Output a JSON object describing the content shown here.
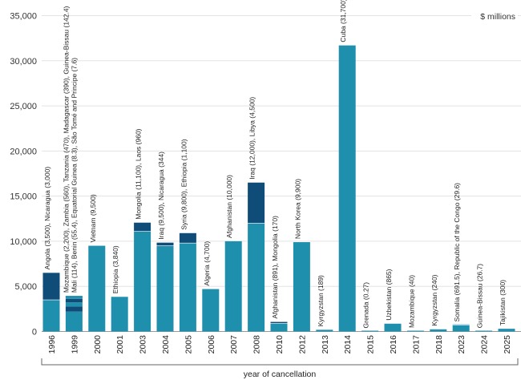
{
  "chart_data": {
    "type": "bar",
    "stacked": true,
    "unit_label": "$ millions",
    "xlabel": "year of cancellation",
    "ylabel": "",
    "ylim": [
      0,
      35000
    ],
    "yticks": [
      "0",
      "5,000",
      "10,000",
      "15,000",
      "20,000",
      "25,000",
      "30,000",
      "35,000"
    ],
    "grid": "horizontal",
    "colors": {
      "light": "#1f8fae",
      "dark": "#0f4d78",
      "divider": "#ffffff"
    },
    "categories": [
      "1996",
      "1999",
      "2000",
      "2001",
      "2003",
      "2004",
      "2005",
      "2006",
      "2007",
      "2008",
      "2010",
      "2012",
      "2013",
      "2014",
      "2015",
      "2016",
      "2017",
      "2018",
      "2023",
      "2024",
      "2025"
    ],
    "bars": [
      {
        "year": "1996",
        "segments": [
          {
            "value": 3500,
            "shade": "light"
          },
          {
            "value": 3000,
            "shade": "dark"
          }
        ],
        "labels": [
          "Angola (3,500), Nicaragua (3,000)"
        ]
      },
      {
        "year": "1999",
        "segments": [
          {
            "value": 2200,
            "shade": "light"
          },
          {
            "value": 560,
            "shade": "dark"
          },
          {
            "value": 470,
            "shade": "light"
          },
          {
            "value": 390,
            "shade": "dark"
          },
          {
            "value": 114,
            "shade": "light"
          },
          {
            "value": 55.4,
            "shade": "light"
          },
          {
            "value": 8.3,
            "shade": "light"
          },
          {
            "value": 7.6,
            "shade": "light"
          },
          {
            "value": 142.4,
            "shade": "light"
          }
        ],
        "labels": [
          "Mozambique (2,200), Zambia (560), Tanzania (470), Madagascar (390),  Guinea-Bissau (142.4)",
          "Mali (114), Benin (55.4), Equatorial Guinea (8.3), São Tomé and Principe (7.6)"
        ]
      },
      {
        "year": "2000",
        "segments": [
          {
            "value": 9500,
            "shade": "light"
          }
        ],
        "labels": [
          "Vietnam (9,500)"
        ]
      },
      {
        "year": "2001",
        "segments": [
          {
            "value": 3840,
            "shade": "light"
          }
        ],
        "labels": [
          "Ethiopia (3,840)"
        ]
      },
      {
        "year": "2003",
        "segments": [
          {
            "value": 11100,
            "shade": "light"
          },
          {
            "value": 960,
            "shade": "dark"
          }
        ],
        "labels": [
          "Mongolia (11,100), Laos (960)"
        ]
      },
      {
        "year": "2004",
        "segments": [
          {
            "value": 9500,
            "shade": "light"
          },
          {
            "value": 344,
            "shade": "dark"
          }
        ],
        "labels": [
          "Iraq (9,500), Nicaragua (344)"
        ]
      },
      {
        "year": "2005",
        "segments": [
          {
            "value": 9800,
            "shade": "light"
          },
          {
            "value": 1100,
            "shade": "dark"
          }
        ],
        "labels": [
          "Syria (9,800), Ethiopia (1,100)"
        ]
      },
      {
        "year": "2006",
        "segments": [
          {
            "value": 4700,
            "shade": "light"
          }
        ],
        "labels": [
          "Algeria (4,700)"
        ]
      },
      {
        "year": "2007",
        "segments": [
          {
            "value": 10000,
            "shade": "light"
          }
        ],
        "labels": [
          "Afghanistan (10,000)"
        ]
      },
      {
        "year": "2008",
        "segments": [
          {
            "value": 12000,
            "shade": "light"
          },
          {
            "value": 4500,
            "shade": "dark"
          }
        ],
        "labels": [
          "Iraq (12,000), Libya (4,500)"
        ]
      },
      {
        "year": "2010",
        "segments": [
          {
            "value": 891,
            "shade": "light"
          },
          {
            "value": 170,
            "shade": "dark"
          }
        ],
        "labels": [
          "Afghanistan (891), Mongolia (170)"
        ]
      },
      {
        "year": "2012",
        "segments": [
          {
            "value": 9900,
            "shade": "light"
          }
        ],
        "labels": [
          "North Korea (9,900)"
        ]
      },
      {
        "year": "2013",
        "segments": [
          {
            "value": 189,
            "shade": "light"
          }
        ],
        "labels": [
          "Kyrgyzstan (189)"
        ]
      },
      {
        "year": "2014",
        "segments": [
          {
            "value": 31700,
            "shade": "light"
          }
        ],
        "labels": [
          "Cuba (31,700)"
        ]
      },
      {
        "year": "2015",
        "segments": [
          {
            "value": 0.27,
            "shade": "light"
          }
        ],
        "labels": [
          "Grenada (0.27)"
        ]
      },
      {
        "year": "2016",
        "segments": [
          {
            "value": 865,
            "shade": "light"
          }
        ],
        "labels": [
          "Uzbekistan (865)"
        ]
      },
      {
        "year": "2017",
        "segments": [
          {
            "value": 40,
            "shade": "light"
          }
        ],
        "labels": [
          "Mozambique (40)"
        ]
      },
      {
        "year": "2018",
        "segments": [
          {
            "value": 240,
            "shade": "light"
          }
        ],
        "labels": [
          "Kyrgyzstan (240)"
        ]
      },
      {
        "year": "2023",
        "segments": [
          {
            "value": 691.5,
            "shade": "light"
          },
          {
            "value": 29.6,
            "shade": "light"
          }
        ],
        "labels": [
          "Somalia (691.5), Republic of the Congo (29.6)"
        ]
      },
      {
        "year": "2024",
        "segments": [
          {
            "value": 26.7,
            "shade": "light"
          }
        ],
        "labels": [
          "Guinea-Bissau (26.7)"
        ]
      },
      {
        "year": "2025",
        "segments": [
          {
            "value": 300,
            "shade": "light"
          }
        ],
        "labels": [
          "Tajikistan (300)"
        ]
      }
    ]
  }
}
